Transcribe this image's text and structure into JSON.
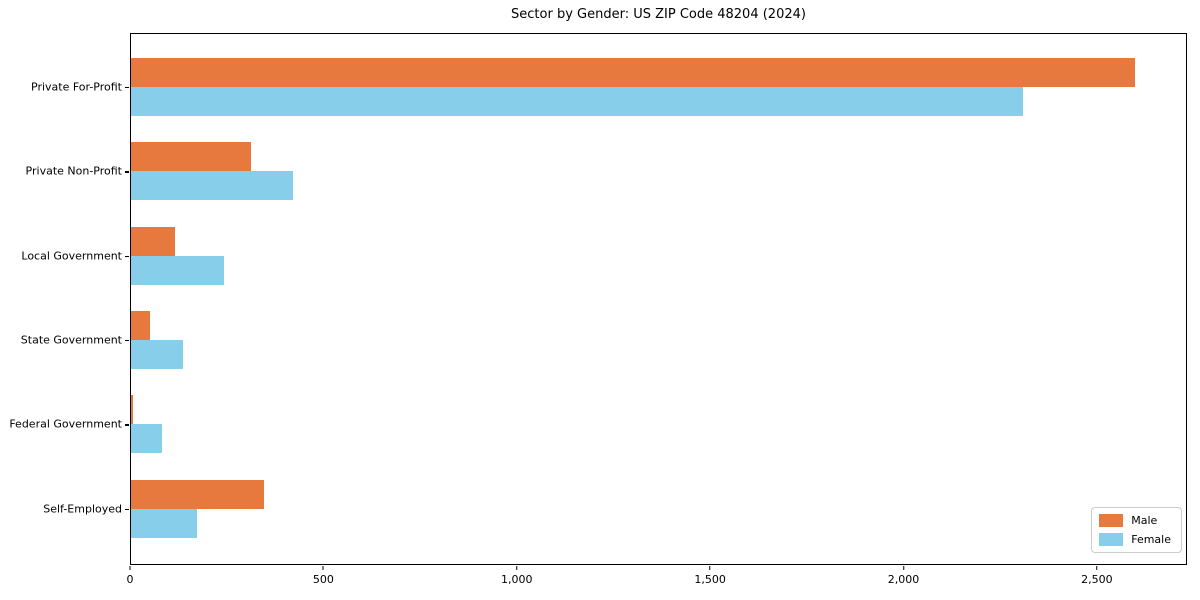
{
  "title": "Sector by Gender: US ZIP Code 48204 (2024)",
  "chart_data": {
    "type": "bar",
    "orientation": "horizontal",
    "title": "Sector by Gender: US ZIP Code 48204 (2024)",
    "categories": [
      "Private For-Profit",
      "Private Non-Profit",
      "Local Government",
      "State Government",
      "Federal Government",
      "Self-Employed"
    ],
    "series": [
      {
        "name": "Male",
        "color": "#E8793E",
        "values": [
          2600,
          310,
          115,
          50,
          5,
          345
        ]
      },
      {
        "name": "Female",
        "color": "#87CEEB",
        "values": [
          2310,
          420,
          240,
          135,
          80,
          170
        ]
      }
    ],
    "xlabel": "",
    "ylabel": "",
    "xlim": [
      0,
      2733
    ],
    "xticks": [
      0,
      500,
      1000,
      1500,
      2000,
      2500
    ],
    "xtick_labels": [
      "0",
      "500",
      "1,000",
      "1,500",
      "2,000",
      "2,500"
    ],
    "grid": false,
    "legend": {
      "position": "lower right",
      "entries": [
        "Male",
        "Female"
      ]
    }
  }
}
